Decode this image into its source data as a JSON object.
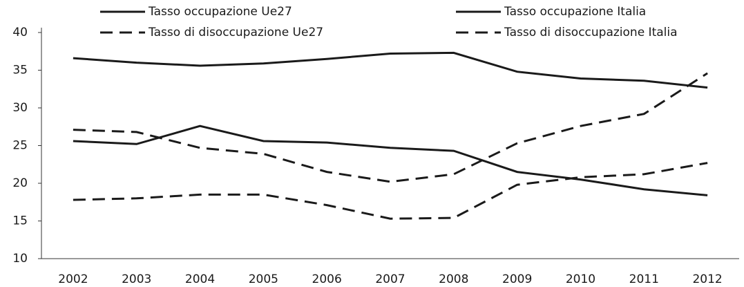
{
  "chart_data": {
    "type": "line",
    "categories": [
      "2002",
      "2003",
      "2004",
      "2005",
      "2006",
      "2007",
      "2008",
      "2009",
      "2010",
      "2011",
      "2012"
    ],
    "series": [
      {
        "name": "Tasso occupazione Ue27",
        "color": "#1a1a1a",
        "style": "solid",
        "values": [
          36.6,
          36.0,
          35.6,
          35.9,
          36.5,
          37.2,
          37.3,
          34.8,
          33.9,
          33.6,
          32.7
        ]
      },
      {
        "name": "Tasso occupazione Italia",
        "color": "#1a1a1a",
        "style": "solid",
        "values": [
          25.6,
          25.2,
          27.6,
          25.6,
          25.4,
          24.7,
          24.3,
          21.5,
          20.5,
          19.2,
          18.4
        ]
      },
      {
        "name": "Tasso di disoccupazione Ue27",
        "color": "#1a1a1a",
        "style": "dashed",
        "values": [
          27.1,
          26.8,
          24.7,
          23.9,
          21.5,
          20.2,
          21.2,
          25.3,
          27.6,
          29.2,
          34.6
        ]
      },
      {
        "name": "Tasso di disoccupazione Italia",
        "color": "#1a1a1a",
        "style": "dashed",
        "values": [
          17.8,
          18.0,
          18.5,
          18.5,
          17.1,
          15.3,
          15.4,
          19.8,
          20.8,
          21.2,
          22.7
        ]
      }
    ],
    "ylim": [
      10,
      40
    ],
    "yticks": [
      10,
      15,
      20,
      25,
      30,
      35,
      40
    ],
    "grid": false
  }
}
